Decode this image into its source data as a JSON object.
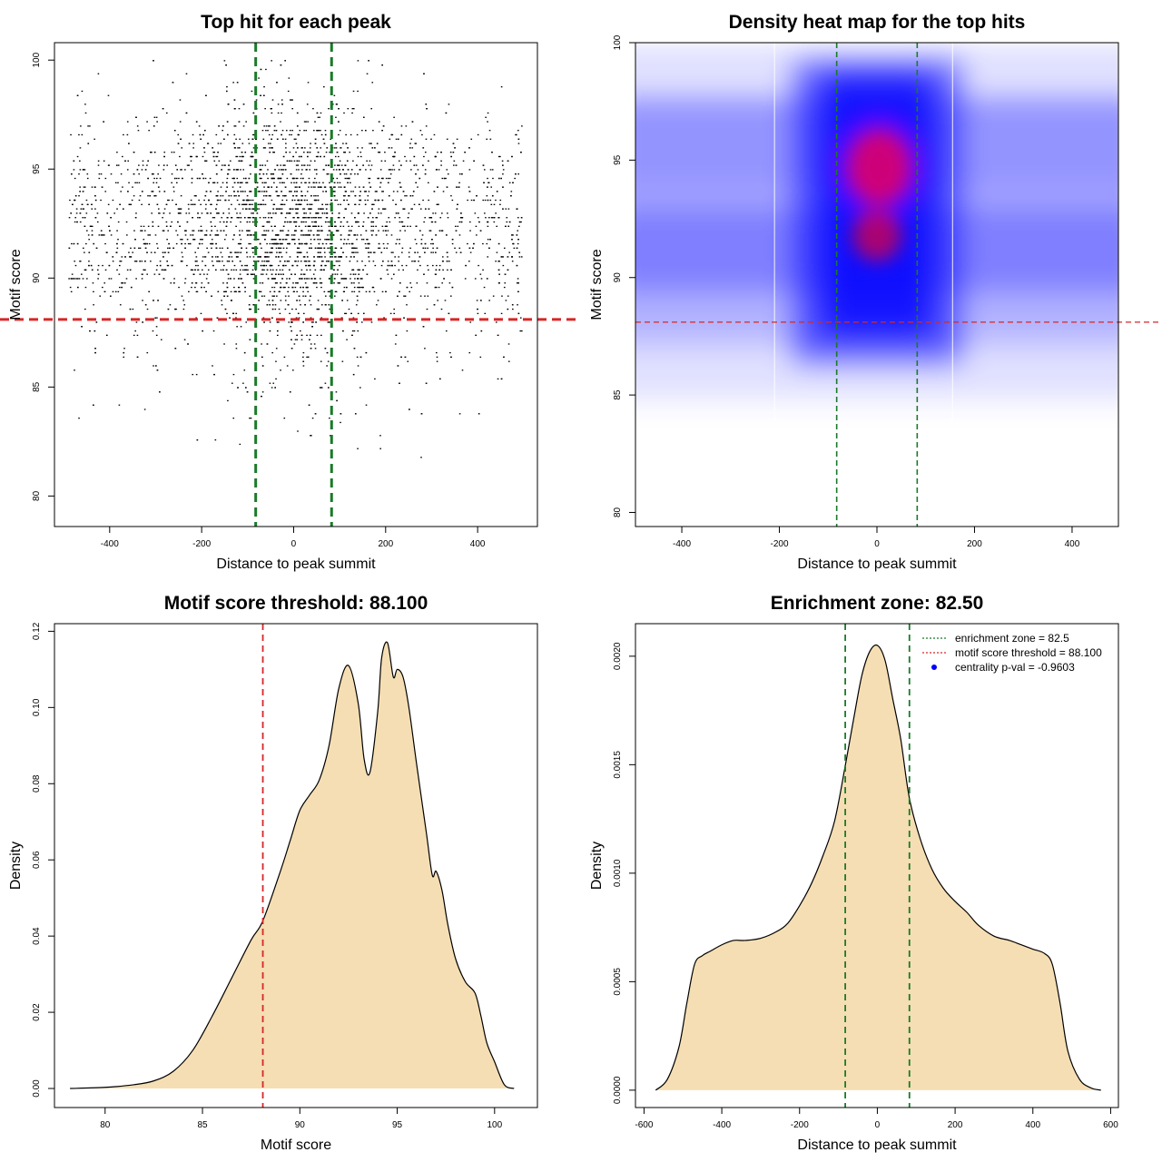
{
  "chart_data": [
    {
      "type": "scatter",
      "title": "Top hit for each peak",
      "xlabel": "Distance to peak summit",
      "ylabel": "Motif score",
      "xlim": [
        -520,
        530
      ],
      "ylim": [
        78.6,
        100.8
      ],
      "xticks": [
        -400,
        -200,
        0,
        200,
        400
      ],
      "xtick_labels": [
        "-400",
        "-200",
        "0",
        "200",
        "400"
      ],
      "yticks": [
        80,
        85,
        90,
        95,
        100
      ],
      "ytick_labels": [
        "80",
        "85",
        "90",
        "95",
        "100"
      ],
      "x_range_points": [
        -490,
        495
      ],
      "y_range_points": [
        79.4,
        100
      ],
      "hlines": [
        {
          "y": 88.1,
          "color": "#d62728",
          "style": "dashed"
        }
      ],
      "vlines": [
        {
          "x": -82.5,
          "color": "#1b7a2a",
          "style": "dashed"
        },
        {
          "x": 82.5,
          "color": "#1b7a2a",
          "style": "dashed"
        }
      ],
      "point_color": "#000000",
      "grid": false
    },
    {
      "type": "heatmap",
      "title": "Density heat map for the top hits",
      "xlabel": "Distance to peak summit",
      "ylabel": "Motif score",
      "xlim": [
        -495,
        495
      ],
      "ylim": [
        79.4,
        100
      ],
      "xticks": [
        -400,
        -200,
        0,
        200,
        400
      ],
      "xtick_labels": [
        "-400",
        "-200",
        "0",
        "200",
        "400"
      ],
      "yticks": [
        80,
        85,
        90,
        95,
        100
      ],
      "ytick_labels": [
        "80",
        "85",
        "90",
        "95",
        "100"
      ],
      "colors": [
        "#ffffff",
        "#0000ff",
        "#ff0000"
      ],
      "hotspots": [
        {
          "x": 5,
          "y": 94.7,
          "level": "max"
        },
        {
          "x": 0,
          "y": 91.8,
          "level": "high"
        }
      ],
      "hlines": [
        {
          "y": 88.1,
          "color": "#d62728",
          "style": "dashed"
        }
      ],
      "vlines": [
        {
          "x": -82.5,
          "color": "#1b7a2a",
          "style": "dashed"
        },
        {
          "x": 82.5,
          "color": "#1b7a2a",
          "style": "dashed"
        }
      ],
      "grid": false
    },
    {
      "type": "area",
      "title": "Motif score threshold: 88.100",
      "xlabel": "Motif score",
      "ylabel": "Density",
      "xlim": [
        77.4,
        102.2
      ],
      "ylim": [
        -0.005,
        0.122
      ],
      "xticks": [
        80,
        85,
        90,
        95,
        100
      ],
      "xtick_labels": [
        "80",
        "85",
        "90",
        "95",
        "100"
      ],
      "yticks": [
        0,
        0.02,
        0.04,
        0.06,
        0.08,
        0.1,
        0.12
      ],
      "ytick_labels": [
        "0.00",
        "0.02",
        "0.04",
        "0.06",
        "0.08",
        "0.10",
        "0.12"
      ],
      "fill_color": "#f5deb3",
      "x": [
        78.2,
        80,
        81.5,
        82.5,
        83.5,
        84.5,
        85.5,
        86.5,
        87.5,
        88.1,
        89,
        89.5,
        90,
        90.5,
        91,
        91.5,
        92,
        92.5,
        93,
        93.3,
        93.6,
        94,
        94.2,
        94.5,
        94.8,
        95,
        95.3,
        95.6,
        96,
        96.5,
        96.8,
        97,
        97.3,
        97.6,
        98,
        98.5,
        99,
        99.3,
        99.6,
        100,
        100.5,
        101
      ],
      "y": [
        0.0,
        0.0003,
        0.001,
        0.002,
        0.0045,
        0.01,
        0.019,
        0.029,
        0.039,
        0.044,
        0.057,
        0.065,
        0.073,
        0.077,
        0.081,
        0.09,
        0.105,
        0.111,
        0.101,
        0.0865,
        0.083,
        0.099,
        0.113,
        0.117,
        0.108,
        0.11,
        0.108,
        0.1,
        0.085,
        0.067,
        0.056,
        0.057,
        0.052,
        0.043,
        0.034,
        0.028,
        0.025,
        0.019,
        0.012,
        0.007,
        0.001,
        0.0
      ],
      "vlines": [
        {
          "x": 88.1,
          "color": "#d62728",
          "style": "dashed"
        }
      ],
      "grid": false
    },
    {
      "type": "area",
      "title": "Enrichment zone: 82.50",
      "xlabel": "Distance to peak summit",
      "ylabel": "Density",
      "xlim": [
        -622,
        620
      ],
      "ylim": [
        -8e-05,
        0.00215
      ],
      "xticks": [
        -600,
        -400,
        -200,
        0,
        200,
        400,
        600
      ],
      "xtick_labels": [
        "-600",
        "-400",
        "-200",
        "0",
        "200",
        "400",
        "600"
      ],
      "yticks": [
        0,
        0.0005,
        0.001,
        0.0015,
        0.002
      ],
      "ytick_labels": [
        "0.0000",
        "0.0005",
        "0.0010",
        "0.0015",
        "0.0020"
      ],
      "fill_color": "#f5deb3",
      "x": [
        -570,
        -540,
        -510,
        -490,
        -470,
        -450,
        -430,
        -400,
        -370,
        -340,
        -300,
        -260,
        -230,
        -200,
        -170,
        -140,
        -110,
        -82,
        -60,
        -40,
        -20,
        0,
        20,
        40,
        60,
        82,
        110,
        140,
        170,
        200,
        230,
        260,
        300,
        340,
        370,
        400,
        430,
        450,
        470,
        490,
        520,
        550,
        575
      ],
      "y": [
        0.0,
        5e-05,
        0.0002,
        0.0004,
        0.00058,
        0.00062,
        0.00064,
        0.00067,
        0.00069,
        0.00069,
        0.0007,
        0.00073,
        0.00077,
        0.00085,
        0.00095,
        0.00108,
        0.00124,
        0.0015,
        0.00172,
        0.00191,
        0.00202,
        0.00205,
        0.00198,
        0.0018,
        0.00162,
        0.00135,
        0.00116,
        0.00102,
        0.00093,
        0.00087,
        0.00082,
        0.00076,
        0.00071,
        0.00069,
        0.00067,
        0.00065,
        0.00063,
        0.00058,
        0.0004,
        0.00018,
        5e-05,
        1e-05,
        0.0
      ],
      "vlines": [
        {
          "x": -82.5,
          "color": "#1b7a2a",
          "style": "dashed"
        },
        {
          "x": 82.5,
          "color": "#1b7a2a",
          "style": "dashed"
        }
      ],
      "legend": {
        "placement": "top-right",
        "entries": [
          {
            "label": "enrichment zone = 82.5",
            "kind": "line",
            "color": "#1b7a2a"
          },
          {
            "label": "motif score threshold = 88.100",
            "kind": "line",
            "color": "#d62728"
          },
          {
            "label": "centrality p-val = -0.9603",
            "kind": "point",
            "color": "#0000ff"
          }
        ]
      },
      "grid": false
    }
  ]
}
